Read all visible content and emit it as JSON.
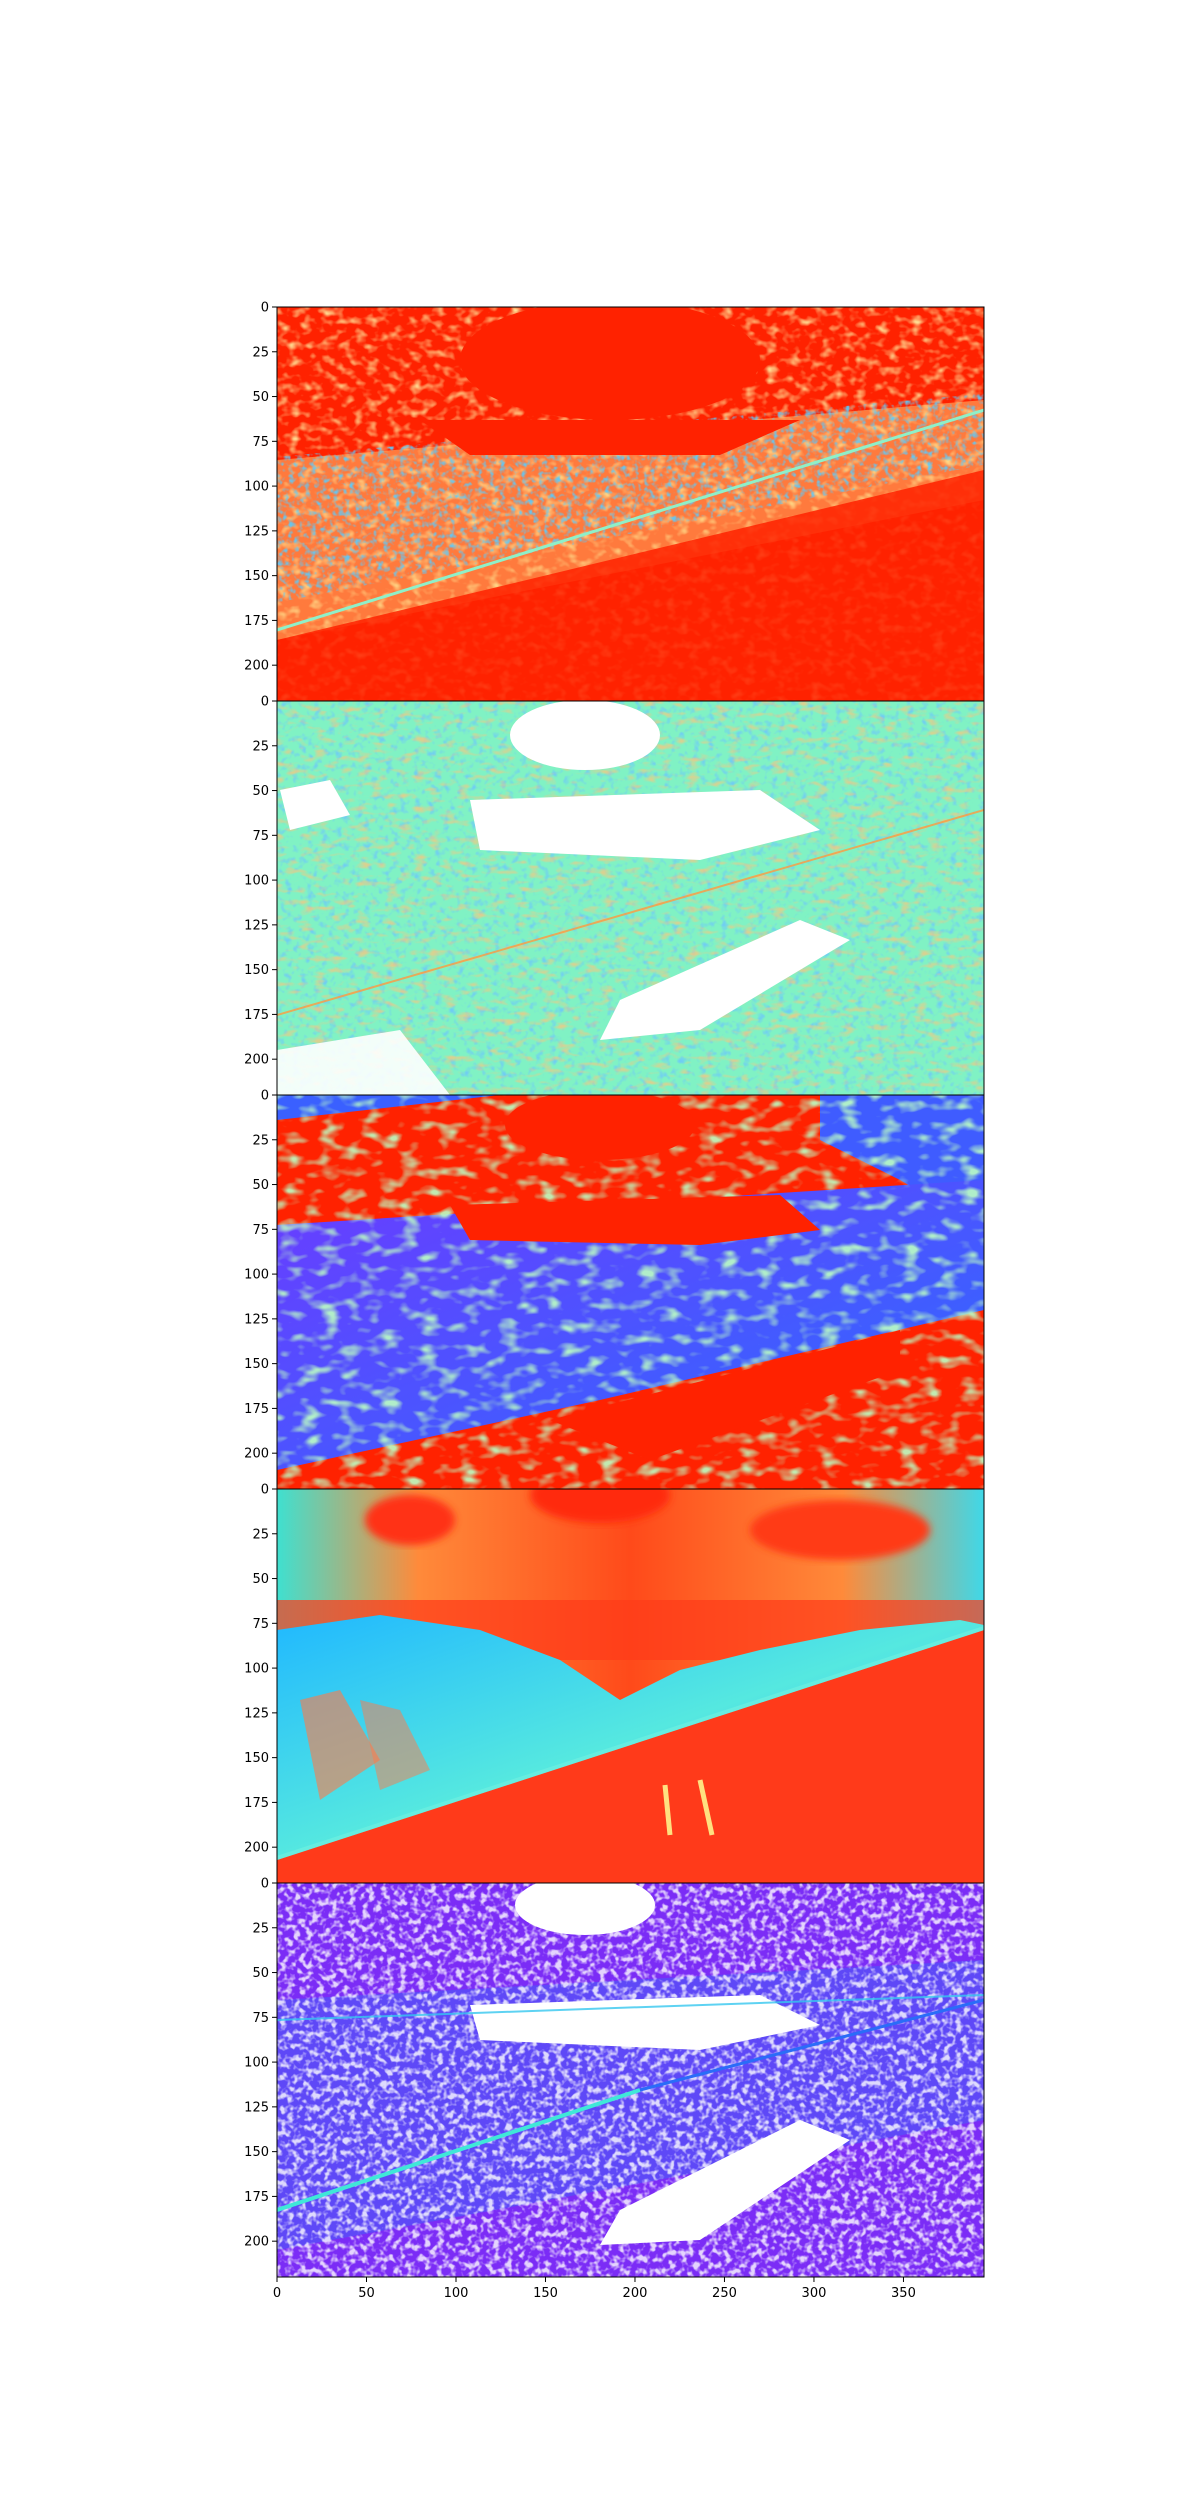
{
  "figure": {
    "type": "stacked colormapped image panels",
    "panel_count": 5,
    "colormap": "rainbow",
    "image_extent": {
      "x": [
        0,
        395
      ],
      "y": [
        0,
        220
      ]
    },
    "shared_x_axis": true
  },
  "panels": [
    {
      "id": "panel-1",
      "style": "edge-contour map, mostly red with yellow/cyan/blue speckled contours",
      "base_color": "#ff2200"
    },
    {
      "id": "panel-2",
      "style": "cyan/green texture with white saturated regions and orange contours",
      "base_color": "#7ff5c8"
    },
    {
      "id": "panel-3",
      "style": "red sky and snow regions over blue/purple hillside with green contours",
      "base_color": "#ff2200"
    },
    {
      "id": "panel-4",
      "style": "smooth photo-like map: red/orange sky and snowfield, cyan/blue mountains",
      "base_color": "#ff3a1a"
    },
    {
      "id": "panel-5",
      "style": "purple/blue map with white saturated regions and cyan edge lines",
      "base_color": "#7b2cf6"
    }
  ],
  "y_ticks": {
    "panel_1": [
      "0",
      "25",
      "50",
      "75",
      "100",
      "125",
      "150",
      "175",
      "200"
    ],
    "panel_2": [
      "0",
      "25",
      "50",
      "75",
      "100",
      "125",
      "150",
      "175",
      "200"
    ],
    "panel_3": [
      "0",
      "25",
      "50",
      "75",
      "100",
      "125",
      "150",
      "175",
      "200"
    ],
    "panel_4": [
      "0",
      "25",
      "50",
      "75",
      "100",
      "125",
      "150",
      "175",
      "200"
    ],
    "panel_5": [
      "0",
      "25",
      "50",
      "75",
      "100",
      "125",
      "150",
      "175",
      "200"
    ]
  },
  "x_ticks": [
    "0",
    "50",
    "100",
    "150",
    "200",
    "250",
    "300",
    "350"
  ],
  "x_tick_values": [
    0,
    50,
    100,
    150,
    200,
    250,
    300,
    350
  ],
  "y_tick_values": [
    0,
    25,
    50,
    75,
    100,
    125,
    150,
    175,
    200
  ]
}
